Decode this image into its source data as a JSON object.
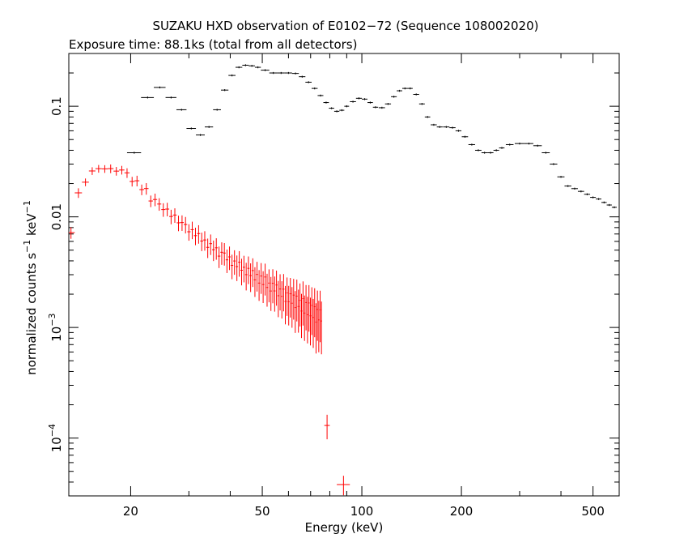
{
  "chart_data": {
    "type": "scatter",
    "title": "SUZAKU HXD observation of E0102−72 (Sequence 108002020)",
    "subtitle": "Exposure time: 88.1ks (total from all detectors)",
    "xlabel": "Energy (keV)",
    "ylabel": {
      "prefix": "normalized counts s",
      "exp1": "−1",
      "mid": " keV",
      "exp2": "−1"
    },
    "x_scale": "log",
    "y_scale": "log",
    "xlim": [
      13,
      600
    ],
    "ylim": [
      3e-05,
      0.3
    ],
    "x_ticks": [
      {
        "value": 20,
        "label": "20"
      },
      {
        "value": 50,
        "label": "50"
      },
      {
        "value": 100,
        "label": "100"
      },
      {
        "value": 200,
        "label": "200"
      },
      {
        "value": 500,
        "label": "500"
      }
    ],
    "y_ticks": [
      {
        "value": 0.1,
        "mantissa": "0.1",
        "exp": ""
      },
      {
        "value": 0.01,
        "mantissa": "0.01",
        "exp": ""
      },
      {
        "value": 0.001,
        "mantissa": "10",
        "exp": "−3"
      },
      {
        "value": 0.0001,
        "mantissa": "10",
        "exp": "−4"
      }
    ],
    "grid": false,
    "colors": {
      "gso": "#000000",
      "pin": "#ff0000"
    },
    "series": [
      {
        "color": "#000000",
        "x": [
          20.5,
          22.5,
          24.5,
          26.5,
          28.5,
          30.5,
          32.5,
          34.5,
          36.5,
          38.5,
          40.5,
          42.5,
          44.5,
          46.5,
          48.5,
          51,
          54,
          57,
          60,
          63,
          66,
          69,
          72,
          75,
          78,
          81,
          84,
          87,
          90,
          94,
          98,
          102,
          106,
          110,
          115,
          120,
          125,
          130,
          135,
          140,
          146,
          152,
          158,
          165,
          172,
          180,
          188,
          196,
          205,
          215,
          225,
          235,
          245,
          255,
          265,
          280,
          300,
          320,
          340,
          360,
          380,
          400,
          420,
          440,
          460,
          480,
          500,
          520,
          540,
          560,
          580
        ],
        "y": [
          0.038,
          0.12,
          0.148,
          0.12,
          0.093,
          0.063,
          0.055,
          0.065,
          0.093,
          0.14,
          0.19,
          0.225,
          0.235,
          0.232,
          0.225,
          0.212,
          0.2,
          0.2,
          0.2,
          0.198,
          0.185,
          0.165,
          0.145,
          0.125,
          0.108,
          0.096,
          0.09,
          0.092,
          0.1,
          0.11,
          0.118,
          0.116,
          0.108,
          0.098,
          0.097,
          0.105,
          0.122,
          0.138,
          0.145,
          0.145,
          0.128,
          0.105,
          0.08,
          0.068,
          0.065,
          0.065,
          0.064,
          0.06,
          0.053,
          0.045,
          0.04,
          0.038,
          0.038,
          0.04,
          0.042,
          0.045,
          0.046,
          0.046,
          0.044,
          0.038,
          0.03,
          0.023,
          0.019,
          0.018,
          0.017,
          0.016,
          0.015,
          0.0145,
          0.0135,
          0.0128,
          0.0122
        ],
        "x_err": [
          1,
          1,
          1,
          1,
          1,
          1,
          1,
          1,
          1,
          1,
          1,
          1,
          1,
          1,
          1,
          1.5,
          1.5,
          1.5,
          1.5,
          1.5,
          1.5,
          1.5,
          1.5,
          1.5,
          1.5,
          1.5,
          1.5,
          1.5,
          1.5,
          2,
          2,
          2,
          2,
          2,
          2.5,
          2.5,
          2.5,
          2.5,
          2.5,
          2.5,
          3,
          3,
          3,
          3.5,
          3.5,
          4,
          4,
          4,
          4.5,
          5,
          5,
          5,
          5,
          5,
          5,
          7.5,
          10,
          10,
          10,
          10,
          10,
          10,
          10,
          10,
          10,
          10,
          10,
          10,
          10,
          10,
          10
        ],
        "y_err_frac": 0.02
      },
      {
        "color": "#ff0000",
        "x": [
          13.2,
          13.9,
          14.6,
          15.3,
          16,
          16.7,
          17.4,
          18.1,
          18.8,
          19.5,
          20.2,
          20.9,
          21.6,
          22.3,
          23,
          23.7,
          24.4,
          25.1,
          25.8,
          26.5,
          27.2,
          27.9,
          28.6,
          29.3,
          30,
          30.7,
          31.4,
          32.1,
          32.8,
          33.5,
          34.2,
          34.9,
          35.6,
          36.3,
          37,
          37.7,
          38.4,
          39.1,
          39.8,
          40.5,
          41.2,
          41.9,
          42.6,
          43.3,
          44,
          44.7,
          45.4,
          46.1,
          46.8,
          47.5,
          48.2,
          48.9,
          49.6,
          50.3,
          51,
          51.7,
          52.4,
          53.1,
          53.8,
          54.5,
          55.2,
          55.9,
          56.6,
          57.3,
          58,
          58.7,
          59.4,
          60.1,
          60.8,
          61.5,
          62.2,
          62.9,
          63.6,
          64.3,
          65,
          65.7,
          66.4,
          67.1,
          67.8,
          68.5,
          69.2,
          69.9,
          70.6,
          71.3,
          72,
          72.7,
          73.4,
          74.1,
          74.8,
          75.5,
          78.5,
          88
        ],
        "y": [
          0.0072,
          0.016,
          0.021,
          0.025,
          0.027,
          0.028,
          0.026,
          0.027,
          0.026,
          0.025,
          0.022,
          0.02,
          0.018,
          0.0175,
          0.0148,
          0.0138,
          0.0128,
          0.012,
          0.0112,
          0.0105,
          0.0098,
          0.0093,
          0.0088,
          0.0082,
          0.0078,
          0.0073,
          0.0069,
          0.0066,
          0.0063,
          0.006,
          0.0057,
          0.0054,
          0.0052,
          0.005,
          0.0048,
          0.0046,
          0.0044,
          0.0043,
          0.0041,
          0.004,
          0.0038,
          0.0037,
          0.0036,
          0.0035,
          0.0034,
          0.0033,
          0.0032,
          0.0031,
          0.003,
          0.0029,
          0.0029,
          0.0028,
          0.0027,
          0.0026,
          0.0026,
          0.0025,
          0.0024,
          0.0024,
          0.0023,
          0.0023,
          0.0022,
          0.0022,
          0.0021,
          0.0021,
          0.002,
          0.002,
          0.0019,
          0.0019,
          0.0018,
          0.0018,
          0.0018,
          0.0017,
          0.0017,
          0.0017,
          0.0016,
          0.0016,
          0.0016,
          0.0015,
          0.0015,
          0.0015,
          0.0015,
          0.0014,
          0.0014,
          0.0014,
          0.0014,
          0.0013,
          0.0013,
          0.0013,
          0.0013,
          0.0013,
          0.00013,
          3.8e-05
        ],
        "y_noise": [
          0,
          0.03,
          -0.02,
          0.04,
          0.01,
          -0.03,
          0.05,
          -0.04,
          0.02,
          0.0,
          -0.05,
          0.06,
          -0.02,
          0.03,
          -0.06,
          0.04,
          0.02,
          -0.03,
          0.05,
          -0.04,
          0.06,
          -0.05,
          0.01,
          0.04,
          -0.06,
          0.05,
          -0.02,
          0.07,
          -0.04,
          0.03,
          -0.07,
          0.06,
          -0.03,
          0.05,
          -0.08,
          0.04,
          0.07,
          -0.05,
          0.06,
          -0.09,
          0.05,
          -0.04,
          0.08,
          -0.06,
          0.03,
          -0.09,
          0.07,
          -0.05,
          0.09,
          -0.07,
          0.04,
          -0.1,
          0.08,
          -0.06,
          0.1,
          -0.08,
          0.05,
          -0.11,
          0.09,
          -0.07,
          0.1,
          -0.12,
          0.06,
          -0.09,
          0.11,
          -0.14,
          0.08,
          -0.1,
          0.12,
          -0.08,
          0.09,
          -0.11,
          0.13,
          -0.09,
          0.1,
          -0.12,
          0.14,
          -0.1,
          0.12,
          -0.13,
          0.11,
          -0.09,
          0.13,
          -0.12,
          0.1,
          -0.14,
          0.12,
          -0.1,
          0.11,
          -0.12,
          0,
          0
        ],
        "y_err_frac": [
          0.12,
          0.1,
          0.08,
          0.08,
          0.08,
          0.08,
          0.09,
          0.09,
          0.09,
          0.1,
          0.1,
          0.11,
          0.11,
          0.12,
          0.12,
          0.13,
          0.13,
          0.14,
          0.14,
          0.15,
          0.15,
          0.16,
          0.16,
          0.17,
          0.17,
          0.18,
          0.18,
          0.19,
          0.19,
          0.2,
          0.2,
          0.21,
          0.21,
          0.22,
          0.22,
          0.23,
          0.23,
          0.24,
          0.24,
          0.25,
          0.25,
          0.26,
          0.26,
          0.27,
          0.27,
          0.28,
          0.28,
          0.29,
          0.29,
          0.3,
          0.3,
          0.31,
          0.31,
          0.32,
          0.32,
          0.33,
          0.33,
          0.34,
          0.34,
          0.35,
          0.35,
          0.36,
          0.36,
          0.37,
          0.37,
          0.38,
          0.38,
          0.39,
          0.39,
          0.4,
          0.4,
          0.41,
          0.41,
          0.42,
          0.42,
          0.43,
          0.43,
          0.44,
          0.44,
          0.45,
          0.45,
          0.46,
          0.46,
          0.47,
          0.47,
          0.48,
          0.48,
          0.49,
          0.49,
          0.5,
          0.25,
          0.2
        ],
        "x_err": [
          0.35,
          0.35,
          0.35,
          0.35,
          0.35,
          0.35,
          0.35,
          0.35,
          0.35,
          0.35,
          0.35,
          0.35,
          0.35,
          0.35,
          0.35,
          0.35,
          0.35,
          0.35,
          0.35,
          0.35,
          0.35,
          0.35,
          0.35,
          0.35,
          0.35,
          0.35,
          0.35,
          0.35,
          0.35,
          0.35,
          0.35,
          0.35,
          0.35,
          0.35,
          0.35,
          0.35,
          0.35,
          0.35,
          0.35,
          0.35,
          0.35,
          0.35,
          0.35,
          0.35,
          0.35,
          0.35,
          0.35,
          0.35,
          0.35,
          0.35,
          0.35,
          0.35,
          0.35,
          0.35,
          0.35,
          0.35,
          0.35,
          0.35,
          0.35,
          0.35,
          0.35,
          0.35,
          0.35,
          0.35,
          0.35,
          0.35,
          0.35,
          0.35,
          0.35,
          0.35,
          0.35,
          0.35,
          0.35,
          0.35,
          0.35,
          0.35,
          0.35,
          0.35,
          0.35,
          0.35,
          0.35,
          0.35,
          0.35,
          0.35,
          0.35,
          0.35,
          0.35,
          0.35,
          0.35,
          0.35,
          1.5,
          4
        ]
      }
    ]
  }
}
